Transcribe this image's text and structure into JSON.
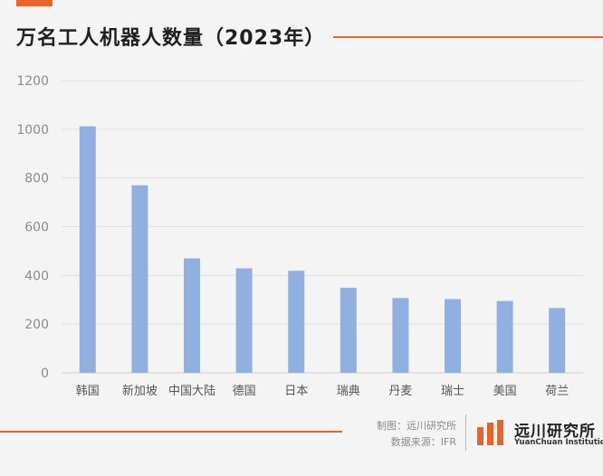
{
  "header": {
    "title": "万名工人机器人数量（2023年）"
  },
  "footer": {
    "credit_line": "制图：远川研究所",
    "source_line": "数据来源：IFR",
    "logo_name": "远川研究所",
    "logo_en": "YuanChuan Institution"
  },
  "colors": {
    "accent": "#e8642c",
    "bar": "#90b0e0",
    "grid": "#e2e2e2",
    "axis_text": "#8c8c8c"
  },
  "chart_data": {
    "type": "bar",
    "title": "万名工人机器人数量（2023年）",
    "categories": [
      "韩国",
      "新加坡",
      "中国大陆",
      "德国",
      "日本",
      "瑞典",
      "丹麦",
      "瑞士",
      "美国",
      "荷兰"
    ],
    "values": [
      1012,
      770,
      470,
      429,
      419,
      349,
      307,
      303,
      295,
      266
    ],
    "ylim": [
      0,
      1200
    ],
    "yticks": [
      0,
      200,
      400,
      600,
      800,
      1000,
      1200
    ],
    "grid": true,
    "legend": "none"
  }
}
